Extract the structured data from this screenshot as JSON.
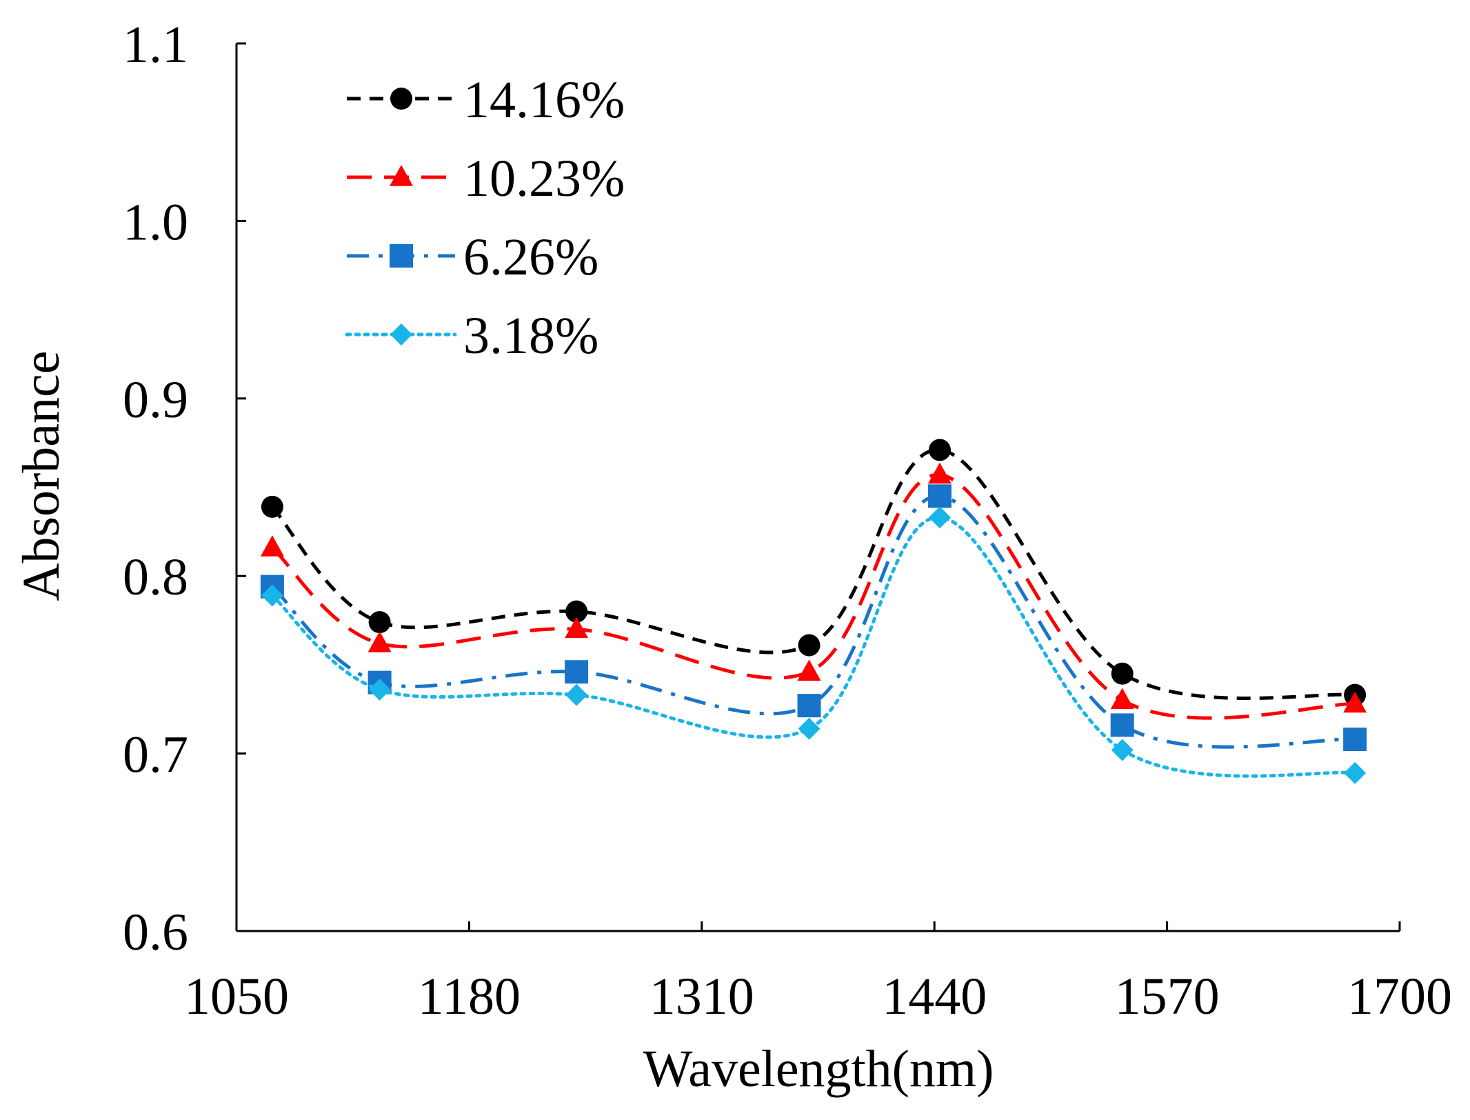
{
  "chart_data": {
    "type": "line",
    "title": "",
    "xlabel": "Wavelength(nm)",
    "ylabel": "Absorbance",
    "xlim": [
      1050,
      1700
    ],
    "ylim": [
      0.6,
      1.1
    ],
    "xticks": [
      1050,
      1180,
      1310,
      1440,
      1570,
      1700
    ],
    "xtick_labels": [
      "1050",
      "1180",
      "1310",
      "1440",
      "1570",
      "1700"
    ],
    "yticks": [
      0.6,
      0.7,
      0.8,
      0.9,
      1.0,
      1.1
    ],
    "ytick_labels": [
      "0.6",
      "0.7",
      "0.8",
      "0.9",
      "1.0",
      "1.1"
    ],
    "grid": false,
    "legend_position": "top-left",
    "x": [
      1070,
      1130,
      1240,
      1370,
      1443,
      1545,
      1675
    ],
    "series": [
      {
        "name": "14.16%",
        "color": "#000000",
        "marker": "circle",
        "dash": "dash-short",
        "values": [
          0.839,
          0.774,
          0.78,
          0.761,
          0.871,
          0.745,
          0.733
        ]
      },
      {
        "name": "10.23%",
        "color": "#ff0000",
        "marker": "triangle",
        "dash": "dash-long",
        "values": [
          0.816,
          0.762,
          0.77,
          0.746,
          0.857,
          0.73,
          0.728
        ]
      },
      {
        "name": "6.26%",
        "color": "#1874c8",
        "marker": "square",
        "dash": "dash-dot",
        "values": [
          0.794,
          0.74,
          0.746,
          0.727,
          0.845,
          0.716,
          0.708
        ]
      },
      {
        "name": "3.18%",
        "color": "#19b4e8",
        "marker": "diamond",
        "dash": "dot",
        "values": [
          0.789,
          0.736,
          0.733,
          0.714,
          0.833,
          0.702,
          0.689
        ]
      }
    ]
  }
}
